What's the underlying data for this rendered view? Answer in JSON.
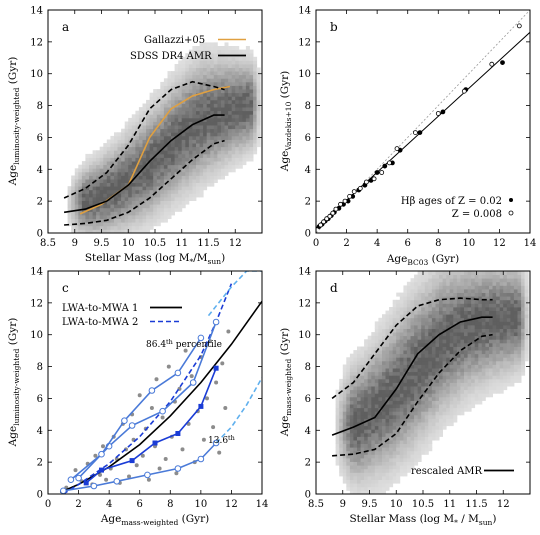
{
  "chart_data": [
    {
      "panel": "a",
      "type": "heatmap",
      "xlabel": "Stellar Mass (log M*/Msun)",
      "xlabel_main": "Stellar Mass (log M",
      "xlabel_sub1": "*",
      "xlabel_mid": "/M",
      "xlabel_sub2": "sun",
      "xlabel_end": ")",
      "ylabel": "Age_luminosity-weighted (Gyr)",
      "ylabel_main": "Age",
      "ylabel_sub": "luminosity-weighted",
      "ylabel_end": " (Gyr)",
      "xlim": [
        8.5,
        12.5
      ],
      "ylim": [
        0,
        14
      ],
      "xticks": [
        "8.5",
        "9",
        "9.5",
        "10",
        "10.5",
        "11",
        "11.5",
        "12"
      ],
      "yticks": [
        "0",
        "2",
        "4",
        "6",
        "8",
        "10",
        "12",
        "14"
      ],
      "density": [
        {
          "x": 8.8,
          "y": 1.6,
          "w": 2.0
        },
        {
          "x": 9.3,
          "y": 2.0,
          "w": 2.8
        },
        {
          "x": 9.8,
          "y": 2.8,
          "w": 3.4
        },
        {
          "x": 10.3,
          "y": 4.0,
          "w": 4.0
        },
        {
          "x": 10.8,
          "y": 5.6,
          "w": 4.4
        },
        {
          "x": 11.3,
          "y": 7.0,
          "w": 4.6
        },
        {
          "x": 11.8,
          "y": 7.6,
          "w": 4.0
        },
        {
          "x": 12.2,
          "y": 7.9,
          "w": 3.4
        }
      ],
      "series": [
        {
          "name": "Gallazzi+05",
          "color": "#e0a040",
          "style": "solid",
          "x": [
            9.1,
            9.5,
            10.0,
            10.4,
            10.8,
            11.2,
            11.6,
            11.9
          ],
          "y": [
            1.2,
            1.8,
            3.0,
            6.0,
            7.8,
            8.6,
            9.0,
            9.2
          ]
        },
        {
          "name": "SDSS DR4 AMR",
          "color": "#000000",
          "style": "solid",
          "x": [
            8.8,
            9.2,
            9.6,
            10.0,
            10.4,
            10.8,
            11.2,
            11.6,
            11.8
          ],
          "y": [
            1.3,
            1.5,
            2.0,
            3.0,
            4.5,
            5.8,
            6.8,
            7.4,
            7.4
          ]
        },
        {
          "name": "",
          "color": "#000000",
          "style": "dashed",
          "x": [
            8.8,
            9.2,
            9.6,
            10.0,
            10.4,
            10.8,
            11.2,
            11.6,
            11.8
          ],
          "y": [
            2.2,
            2.8,
            3.8,
            5.5,
            7.8,
            9.0,
            9.5,
            9.2,
            9.0
          ]
        },
        {
          "name": "",
          "color": "#000000",
          "style": "dashed",
          "x": [
            8.8,
            9.2,
            9.6,
            10.0,
            10.4,
            10.8,
            11.2,
            11.6,
            11.8
          ],
          "y": [
            0.5,
            0.6,
            0.8,
            1.3,
            2.2,
            3.4,
            4.6,
            5.6,
            5.8
          ]
        }
      ]
    },
    {
      "panel": "b",
      "type": "scatter",
      "xlabel": "Age_BC03 (Gyr)",
      "xlabel_main": "Age",
      "xlabel_sub": "BC03",
      "xlabel_end": " (Gyr)",
      "ylabel": "Age_Vazdekis+10 (Gyr)",
      "ylabel_main": "Age",
      "ylabel_sub": "Vazdekis+10",
      "ylabel_end": " (Gyr)",
      "xlim": [
        0,
        14
      ],
      "ylim": [
        0,
        14
      ],
      "xticks": [
        "0",
        "2",
        "4",
        "6",
        "8",
        "10",
        "12",
        "14"
      ],
      "yticks": [
        "0",
        "2",
        "4",
        "6",
        "8",
        "10",
        "12",
        "14"
      ],
      "legend_line1": "Hβ ages of Z = 0.02",
      "legend_line2": "Z = 0.008",
      "reference_lines": [
        {
          "desc": "one-to-one",
          "style": "dotted",
          "x": [
            0,
            14
          ],
          "y": [
            0,
            14
          ]
        },
        {
          "desc": "fit",
          "style": "solid",
          "x": [
            0,
            14
          ],
          "y": [
            0.3,
            12.6
          ]
        }
      ],
      "series": [
        {
          "name": "Z = 0.02",
          "marker": "filled",
          "points": [
            [
              0.2,
              0.4
            ],
            [
              0.4,
              0.55
            ],
            [
              0.6,
              0.75
            ],
            [
              0.8,
              0.9
            ],
            [
              1.0,
              1.1
            ],
            [
              1.2,
              1.3
            ],
            [
              1.5,
              1.55
            ],
            [
              1.8,
              1.8
            ],
            [
              2.1,
              2.0
            ],
            [
              2.4,
              2.3
            ],
            [
              2.8,
              2.7
            ],
            [
              3.2,
              3.0
            ],
            [
              3.6,
              3.3
            ],
            [
              4.0,
              3.8
            ],
            [
              4.5,
              4.2
            ],
            [
              5.0,
              4.4
            ],
            [
              5.5,
              5.2
            ],
            [
              6.8,
              6.3
            ],
            [
              8.3,
              7.6
            ],
            [
              9.8,
              9.0
            ],
            [
              12.2,
              10.7
            ]
          ]
        },
        {
          "name": "Z = 0.008",
          "marker": "open",
          "points": [
            [
              0.3,
              0.5
            ],
            [
              0.5,
              0.7
            ],
            [
              0.7,
              0.9
            ],
            [
              0.9,
              1.05
            ],
            [
              1.1,
              1.25
            ],
            [
              1.3,
              1.5
            ],
            [
              1.6,
              1.8
            ],
            [
              1.9,
              2.0
            ],
            [
              2.2,
              2.3
            ],
            [
              2.5,
              2.6
            ],
            [
              2.9,
              2.8
            ],
            [
              3.3,
              3.2
            ],
            [
              3.8,
              3.4
            ],
            [
              4.3,
              3.8
            ],
            [
              4.8,
              4.4
            ],
            [
              5.3,
              5.3
            ],
            [
              6.5,
              6.3
            ],
            [
              8.0,
              7.5
            ],
            [
              9.7,
              8.9
            ],
            [
              11.5,
              10.6
            ],
            [
              13.3,
              13.0
            ]
          ]
        }
      ]
    },
    {
      "panel": "c",
      "type": "scatter",
      "xlabel": "Age_mass-weighted (Gyr)",
      "xlabel_main": "Age",
      "xlabel_sub": "mass-weighted",
      "xlabel_end": " (Gyr)",
      "ylabel": "Age_luminosity-weighted (Gyr)",
      "ylabel_main": "Age",
      "ylabel_sub": "luminosity-weighted",
      "ylabel_end": " (Gyr)",
      "xlim": [
        0,
        14
      ],
      "ylim": [
        0,
        14
      ],
      "xticks": [
        "0",
        "2",
        "4",
        "6",
        "8",
        "10",
        "12",
        "14"
      ],
      "yticks": [
        "0",
        "2",
        "4",
        "6",
        "8",
        "10",
        "12",
        "14"
      ],
      "annotation_upper": "86.4",
      "annotation_upper_sup": "th",
      "annotation_upper_end": " percentile",
      "annotation_lower": "13.6",
      "annotation_lower_sup": "th",
      "scatter_points": [
        [
          1.2,
          0.4
        ],
        [
          1.8,
          1.5
        ],
        [
          2.2,
          0.8
        ],
        [
          2.6,
          1.9
        ],
        [
          2.9,
          0.6
        ],
        [
          3.1,
          2.4
        ],
        [
          3.4,
          1.2
        ],
        [
          3.6,
          3.0
        ],
        [
          3.8,
          0.9
        ],
        [
          4.1,
          1.6
        ],
        [
          4.3,
          3.6
        ],
        [
          4.5,
          2.2
        ],
        [
          4.7,
          0.7
        ],
        [
          4.9,
          4.4
        ],
        [
          5.1,
          2.8
        ],
        [
          5.3,
          1.1
        ],
        [
          5.5,
          5.0
        ],
        [
          5.6,
          3.4
        ],
        [
          5.8,
          1.8
        ],
        [
          6.0,
          6.2
        ],
        [
          6.2,
          2.4
        ],
        [
          6.4,
          4.1
        ],
        [
          6.6,
          0.9
        ],
        [
          6.8,
          5.4
        ],
        [
          7.0,
          3.0
        ],
        [
          7.1,
          7.2
        ],
        [
          7.3,
          1.6
        ],
        [
          7.5,
          4.8
        ],
        [
          7.7,
          2.2
        ],
        [
          7.9,
          8.0
        ],
        [
          8.1,
          3.6
        ],
        [
          8.3,
          5.8
        ],
        [
          8.4,
          1.3
        ],
        [
          8.6,
          6.6
        ],
        [
          8.8,
          2.8
        ],
        [
          9.0,
          9.0
        ],
        [
          9.2,
          4.4
        ],
        [
          9.4,
          7.4
        ],
        [
          9.6,
          2.0
        ],
        [
          9.8,
          5.2
        ],
        [
          10.0,
          8.6
        ],
        [
          10.2,
          3.4
        ],
        [
          10.4,
          6.0
        ],
        [
          10.6,
          9.6
        ],
        [
          10.8,
          4.2
        ],
        [
          11.0,
          7.0
        ],
        [
          11.2,
          2.6
        ],
        [
          11.4,
          8.2
        ],
        [
          11.6,
          5.4
        ],
        [
          11.8,
          10.2
        ]
      ],
      "series": [
        {
          "name": "LWA-to-MWA 1",
          "color": "#000000",
          "style": "solid",
          "x": [
            0.8,
            2,
            4,
            6,
            8,
            10,
            12,
            14
          ],
          "y": [
            0.1,
            0.6,
            1.7,
            3.1,
            4.9,
            7.0,
            9.4,
            12.1
          ]
        },
        {
          "name": "LWA-to-MWA 2",
          "color": "#1a3cd6",
          "style": "dashed",
          "x": [
            1.0,
            2,
            4,
            6,
            8,
            10,
            11,
            12
          ],
          "y": [
            0.0,
            0.6,
            1.9,
            3.6,
            5.8,
            8.7,
            10.8,
            13.2
          ]
        },
        {
          "name": "",
          "color": "#4a7ad8",
          "style": "solid",
          "marker": "open-circle",
          "x": [
            2.0,
            4.0,
            5.5,
            7.5,
            9.5,
            11.0
          ],
          "y": [
            1.0,
            3.0,
            4.3,
            5.2,
            7.0,
            10.8
          ]
        },
        {
          "name": "",
          "color": "#4a7ad8",
          "style": "solid",
          "marker": "open-circle",
          "x": [
            1.5,
            3.5,
            5.0,
            6.8,
            8.5,
            10.0
          ],
          "y": [
            0.9,
            2.5,
            4.6,
            6.5,
            7.6,
            9.8
          ]
        },
        {
          "name": "",
          "color": "#4a7ad8",
          "style": "solid",
          "marker": "open-circle",
          "x": [
            1.0,
            3.0,
            4.5,
            6.5,
            8.5,
            10.0,
            11.0
          ],
          "y": [
            0.2,
            0.5,
            0.8,
            1.2,
            1.6,
            2.2,
            3.2
          ]
        },
        {
          "name": "",
          "color": "#1a3cd6",
          "style": "solid",
          "marker": "filled-square",
          "x": [
            2.5,
            3.5,
            5.5,
            7.0,
            8.5,
            10.0,
            11.0
          ],
          "y": [
            0.7,
            1.5,
            2.1,
            3.2,
            3.8,
            5.5,
            7.9
          ]
        },
        {
          "name": "",
          "color": "#60b0ee",
          "style": "dashed",
          "x": [
            10.5,
            12.0,
            13.0,
            14.0
          ],
          "y": [
            11.2,
            13.0,
            14.0,
            14.0
          ]
        },
        {
          "name": "",
          "color": "#60b0ee",
          "style": "dashed",
          "x": [
            11.0,
            12.0,
            13.0,
            14.0
          ],
          "y": [
            3.2,
            4.2,
            5.6,
            7.3
          ]
        }
      ]
    },
    {
      "panel": "d",
      "type": "heatmap",
      "xlabel": "Stellar Mass (log M*/Msun)",
      "xlabel_main": "Stellar Mass (log M",
      "xlabel_sub1": "*",
      "xlabel_mid": " / M",
      "xlabel_sub2": "sun",
      "xlabel_end": ")",
      "ylabel": "Age_mass-weighted (Gyr)",
      "ylabel_main": "Age",
      "ylabel_sub": "mass-weighted",
      "ylabel_end": " (Gyr)",
      "xlim": [
        8.5,
        12.5
      ],
      "ylim": [
        0,
        14
      ],
      "xticks": [
        "8.5",
        "9",
        "9.5",
        "10",
        "10.5",
        "11",
        "11.5",
        "12"
      ],
      "yticks": [
        "0",
        "2",
        "4",
        "6",
        "8",
        "10",
        "12",
        "14"
      ],
      "density": [
        {
          "x": 8.8,
          "y": 4.0,
          "w": 3.6
        },
        {
          "x": 9.3,
          "y": 4.4,
          "w": 4.6
        },
        {
          "x": 9.8,
          "y": 5.8,
          "w": 5.4
        },
        {
          "x": 10.3,
          "y": 7.6,
          "w": 5.8
        },
        {
          "x": 10.8,
          "y": 9.4,
          "w": 5.6
        },
        {
          "x": 11.3,
          "y": 10.4,
          "w": 5.0
        },
        {
          "x": 11.8,
          "y": 10.8,
          "w": 4.4
        },
        {
          "x": 12.2,
          "y": 11.0,
          "w": 4.0
        }
      ],
      "series": [
        {
          "name": "rescaled AMR",
          "color": "#000000",
          "style": "solid",
          "x": [
            8.8,
            9.2,
            9.6,
            10.0,
            10.4,
            10.8,
            11.2,
            11.6,
            11.8
          ],
          "y": [
            3.7,
            4.2,
            4.8,
            6.6,
            8.8,
            10.0,
            10.8,
            11.1,
            11.1
          ]
        },
        {
          "name": "",
          "color": "#000000",
          "style": "dashed",
          "x": [
            8.8,
            9.2,
            9.6,
            10.0,
            10.4,
            10.8,
            11.2,
            11.6,
            11.8
          ],
          "y": [
            6.0,
            7.0,
            8.8,
            10.6,
            11.8,
            12.2,
            12.3,
            12.2,
            12.2
          ]
        },
        {
          "name": "",
          "color": "#000000",
          "style": "dashed",
          "x": [
            8.8,
            9.2,
            9.6,
            10.0,
            10.4,
            10.8,
            11.2,
            11.6,
            11.8
          ],
          "y": [
            2.4,
            2.5,
            2.8,
            3.8,
            5.8,
            7.6,
            9.0,
            9.9,
            10.0
          ]
        }
      ]
    }
  ]
}
